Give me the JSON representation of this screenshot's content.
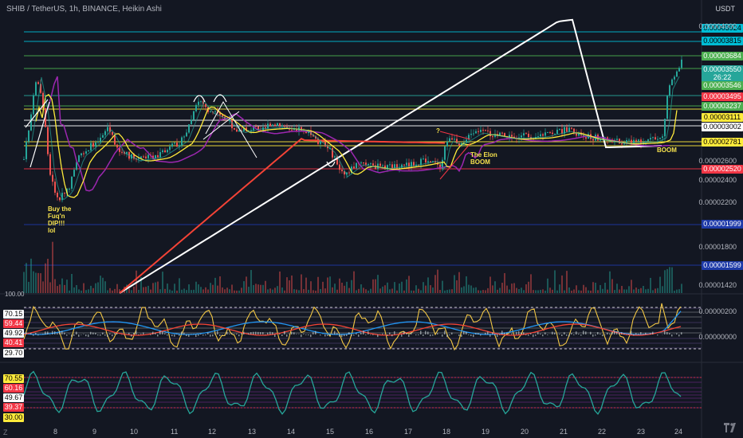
{
  "header": {
    "symbol_line": "SHIB / TetherUS, 1h, BINANCE, Heikin Ashi"
  },
  "currency": "USDT",
  "price_axis_labels": [
    "0.00004000",
    "0.00002600",
    "0.00002400",
    "0.00002200",
    "0.00001800",
    "0.00001420"
  ],
  "price_tags": [
    {
      "text": "0.00003924",
      "bg": "#00bcd4",
      "fg": "#000000"
    },
    {
      "text": "0.00003815",
      "bg": "#00bcd4",
      "fg": "#000000"
    },
    {
      "text": "0.00003684",
      "bg": "#4caf50",
      "fg": "#ffffff"
    },
    {
      "text": "0.00003550",
      "bg": "#26a69a",
      "fg": "#ffffff"
    },
    {
      "text": "26:22",
      "bg": "#26a69a",
      "fg": "#ffffff"
    },
    {
      "text": "0.00003546",
      "bg": "#4caf50",
      "fg": "#ffffff"
    },
    {
      "text": "0.00003495",
      "bg": "#f23645",
      "fg": "#ffffff"
    },
    {
      "text": "0.00003237",
      "bg": "#4caf50",
      "fg": "#ffffff"
    },
    {
      "text": "0.00003111",
      "bg": "#ffeb3b",
      "fg": "#000000"
    },
    {
      "text": "0.00003002",
      "bg": "#ffffff",
      "fg": "#000000"
    },
    {
      "text": "0.00002781",
      "bg": "#ffeb3b",
      "fg": "#000000"
    },
    {
      "text": "0.00002520",
      "bg": "#f23645",
      "fg": "#ffffff"
    },
    {
      "text": "0.00001999",
      "bg": "#1e3aa8",
      "fg": "#ffffff"
    },
    {
      "text": "0.00001599",
      "bg": "#1e3aa8",
      "fg": "#ffffff"
    }
  ],
  "osc1": {
    "tags": [
      {
        "text": "70.15",
        "bg": "#ffffff",
        "fg": "#000"
      },
      {
        "text": "59.44",
        "bg": "#f23645",
        "fg": "#fff"
      },
      {
        "text": "49.92",
        "bg": "#ffffff",
        "fg": "#000"
      },
      {
        "text": "40.41",
        "bg": "#f23645",
        "fg": "#fff"
      },
      {
        "text": "29.70",
        "bg": "#ffffff",
        "fg": "#000"
      }
    ],
    "right_labels": [
      "0.00000200",
      "0.00000000"
    ],
    "top_label": "100.00"
  },
  "osc2": {
    "tags": [
      {
        "text": "70.55",
        "bg": "#ffeb3b",
        "fg": "#000"
      },
      {
        "text": "60.16",
        "bg": "#f23645",
        "fg": "#fff"
      },
      {
        "text": "49.67",
        "bg": "#ffffff",
        "fg": "#000"
      },
      {
        "text": "39.37",
        "bg": "#f23645",
        "fg": "#fff"
      },
      {
        "text": "30.00",
        "bg": "#ffeb3b",
        "fg": "#000"
      }
    ]
  },
  "time_labels": [
    "8",
    "9",
    "10",
    "11",
    "12",
    "13",
    "14",
    "15",
    "16",
    "17",
    "18",
    "19",
    "20",
    "21",
    "22",
    "23",
    "24"
  ],
  "annotations": {
    "buy_dip": [
      "Buy the",
      "Fuq'n",
      "DIP!!!",
      "lol"
    ],
    "the_elon": [
      "The Elon",
      "BOOM"
    ],
    "boom": [
      "BOOM"
    ],
    "question": "?"
  },
  "ui": {
    "zoom_button": "Z"
  },
  "colors": {
    "up": "#26a69a",
    "down": "#ef5350",
    "bg": "#131722"
  }
}
